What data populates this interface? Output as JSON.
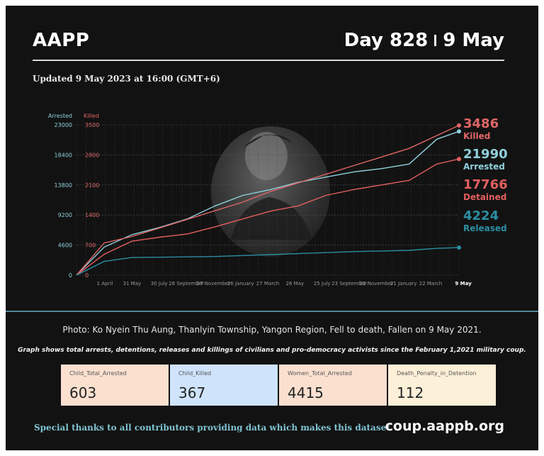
{
  "header": {
    "brand": "AAPP",
    "day": "Day 828",
    "date": "9 May"
  },
  "updated": "Updated 9 May 2023 at 16:00 (GMT+6)",
  "colors": {
    "arrested": "#8fd0dc",
    "killed": "#e06666",
    "detained": "#e35f5f",
    "released": "#2b8fa2"
  },
  "chart_data": {
    "type": "line",
    "left_axis": {
      "label": "Arrested",
      "ticks": [
        0,
        4600,
        9200,
        13800,
        18400,
        23000
      ],
      "ylim": [
        0,
        23000
      ]
    },
    "right_axis": {
      "label": "Killed",
      "ticks": [
        0,
        700,
        1400,
        2100,
        2800,
        3500
      ],
      "ylim": [
        0,
        3500
      ]
    },
    "x_ticks": [
      "1 April",
      "31 May",
      "30 July",
      "28 September",
      "27 November",
      "26 January",
      "27 March",
      "26 May",
      "25 July",
      "23 September",
      "22 November",
      "21 January",
      "22 March",
      "9 May"
    ],
    "x": [
      0,
      60,
      120,
      180,
      240,
      300,
      360,
      420,
      480,
      540,
      600,
      660,
      720,
      780,
      828
    ],
    "series": [
      {
        "name": "Arrested",
        "axis": "left",
        "values": [
          0,
          4300,
          6200,
          7300,
          8600,
          10600,
          12200,
          13100,
          14200,
          15000,
          15800,
          16300,
          17000,
          20800,
          21990
        ]
      },
      {
        "name": "Killed",
        "axis": "right",
        "values": [
          0,
          750,
          900,
          1100,
          1300,
          1500,
          1700,
          1950,
          2150,
          2350,
          2550,
          2750,
          2950,
          3250,
          3486
        ]
      },
      {
        "name": "Detained",
        "axis": "left",
        "values": [
          0,
          3200,
          5200,
          5800,
          6300,
          7400,
          8600,
          9800,
          10600,
          12200,
          13100,
          13800,
          14500,
          17000,
          17766
        ]
      },
      {
        "name": "Released",
        "axis": "left",
        "values": [
          0,
          2100,
          2700,
          2750,
          2800,
          2850,
          3000,
          3150,
          3300,
          3450,
          3600,
          3700,
          3800,
          4100,
          4224
        ]
      }
    ],
    "end_labels": [
      {
        "value": "3486",
        "label": "Killed"
      },
      {
        "value": "21990",
        "label": "Arrested"
      },
      {
        "value": "17766",
        "label": "Detained"
      },
      {
        "value": "4224",
        "label": "Released"
      }
    ]
  },
  "caption": "Photo: Ko Nyein Thu Aung, Thanlyin Township, Yangon Region, Fell to death, Fallen on 9 May 2021.",
  "subcaption": "Graph shows total arrests, detentions, releases and killings of civilians and pro-democracy activists since the February 1,2021 military coup.",
  "stats": [
    {
      "label": "Child_Total_Arrested",
      "value": "603",
      "color": "#fbe0cf"
    },
    {
      "label": "Child_Killed",
      "value": "367",
      "color": "#cfe3fb"
    },
    {
      "label": "Women_Total_Arrested",
      "value": "4415",
      "color": "#fbe0cf"
    },
    {
      "label": "Death_Penalty_in_Detention",
      "value": "112",
      "color": "#fdf0d8"
    }
  ],
  "footer": {
    "thanks": "Special thanks to all contributors providing data which makes this dataset.",
    "url": "coup.aappb.org"
  }
}
